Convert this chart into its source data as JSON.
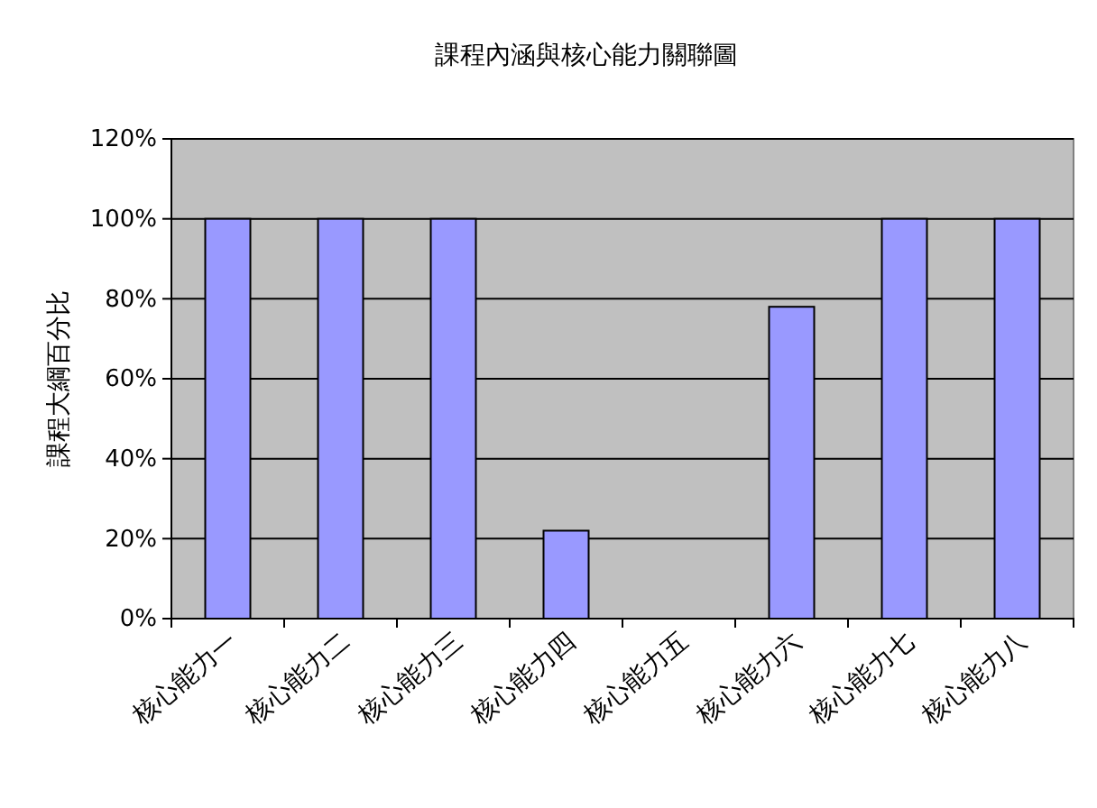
{
  "chart_data": {
    "type": "bar",
    "title": "課程內涵與核心能力關聯圖",
    "ylabel": "課程大綱百分比",
    "categories": [
      "核心能力一",
      "核心能力二",
      "核心能力三",
      "核心能力四",
      "核心能力五",
      "核心能力六",
      "核心能力七",
      "核心能力八"
    ],
    "values": [
      100,
      100,
      100,
      22,
      0,
      78,
      100,
      100
    ],
    "color": "#9999ff",
    "ylim": [
      0,
      120
    ],
    "yticks": [
      {
        "value": 0,
        "label": "0%"
      },
      {
        "value": 20,
        "label": "20%"
      },
      {
        "value": 40,
        "label": "40%"
      },
      {
        "value": 60,
        "label": "60%"
      },
      {
        "value": 80,
        "label": "80%"
      },
      {
        "value": 100,
        "label": "100%"
      },
      {
        "value": 120,
        "label": "120%"
      }
    ],
    "grid": "y"
  }
}
